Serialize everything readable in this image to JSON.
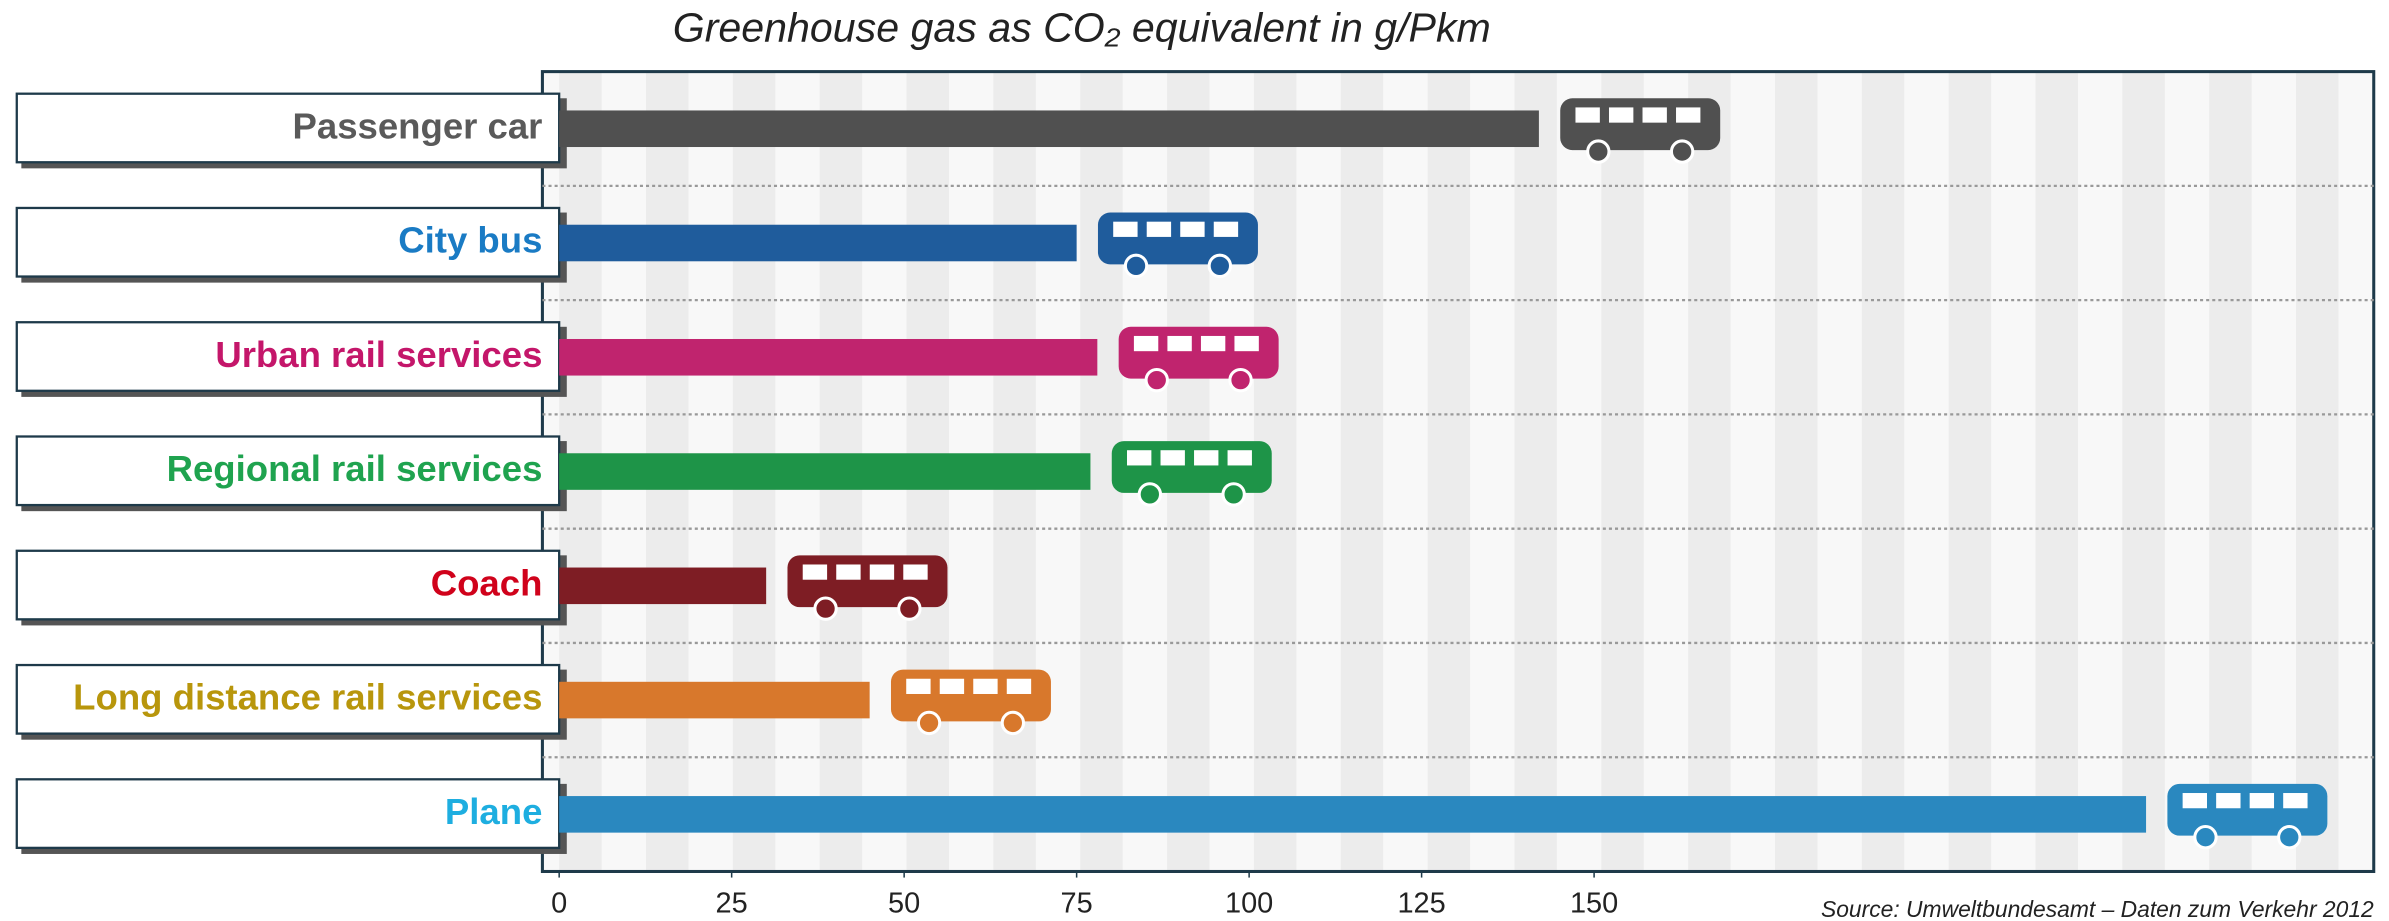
{
  "chart_data": {
    "type": "bar",
    "orientation": "horizontal",
    "title": "Greenhouse gas as CO₂ equivalent in g/Pkm",
    "source": "Source: Umweltbundesamt – Daten zum Verkehr 2012",
    "categories": [
      "Passenger car",
      "City bus",
      "Urban rail services",
      "Regional rail services",
      "Coach",
      "Long distance rail services",
      "Plane"
    ],
    "values": [
      142,
      75,
      78,
      77,
      30,
      45,
      230
    ],
    "colors": [
      "#505050",
      "#1f5c9c",
      "#c0246e",
      "#1e9448",
      "#7e1d24",
      "#d8782c",
      "#2a88bf"
    ],
    "label_colors": [
      "#5a5a5a",
      "#1a7bc4",
      "#c4166a",
      "#1fa34f",
      "#d0021b",
      "#b8960c",
      "#1eaee0"
    ],
    "xlim": [
      0,
      263
    ],
    "xticks": [
      0,
      25,
      50,
      75,
      100,
      125,
      150
    ]
  }
}
